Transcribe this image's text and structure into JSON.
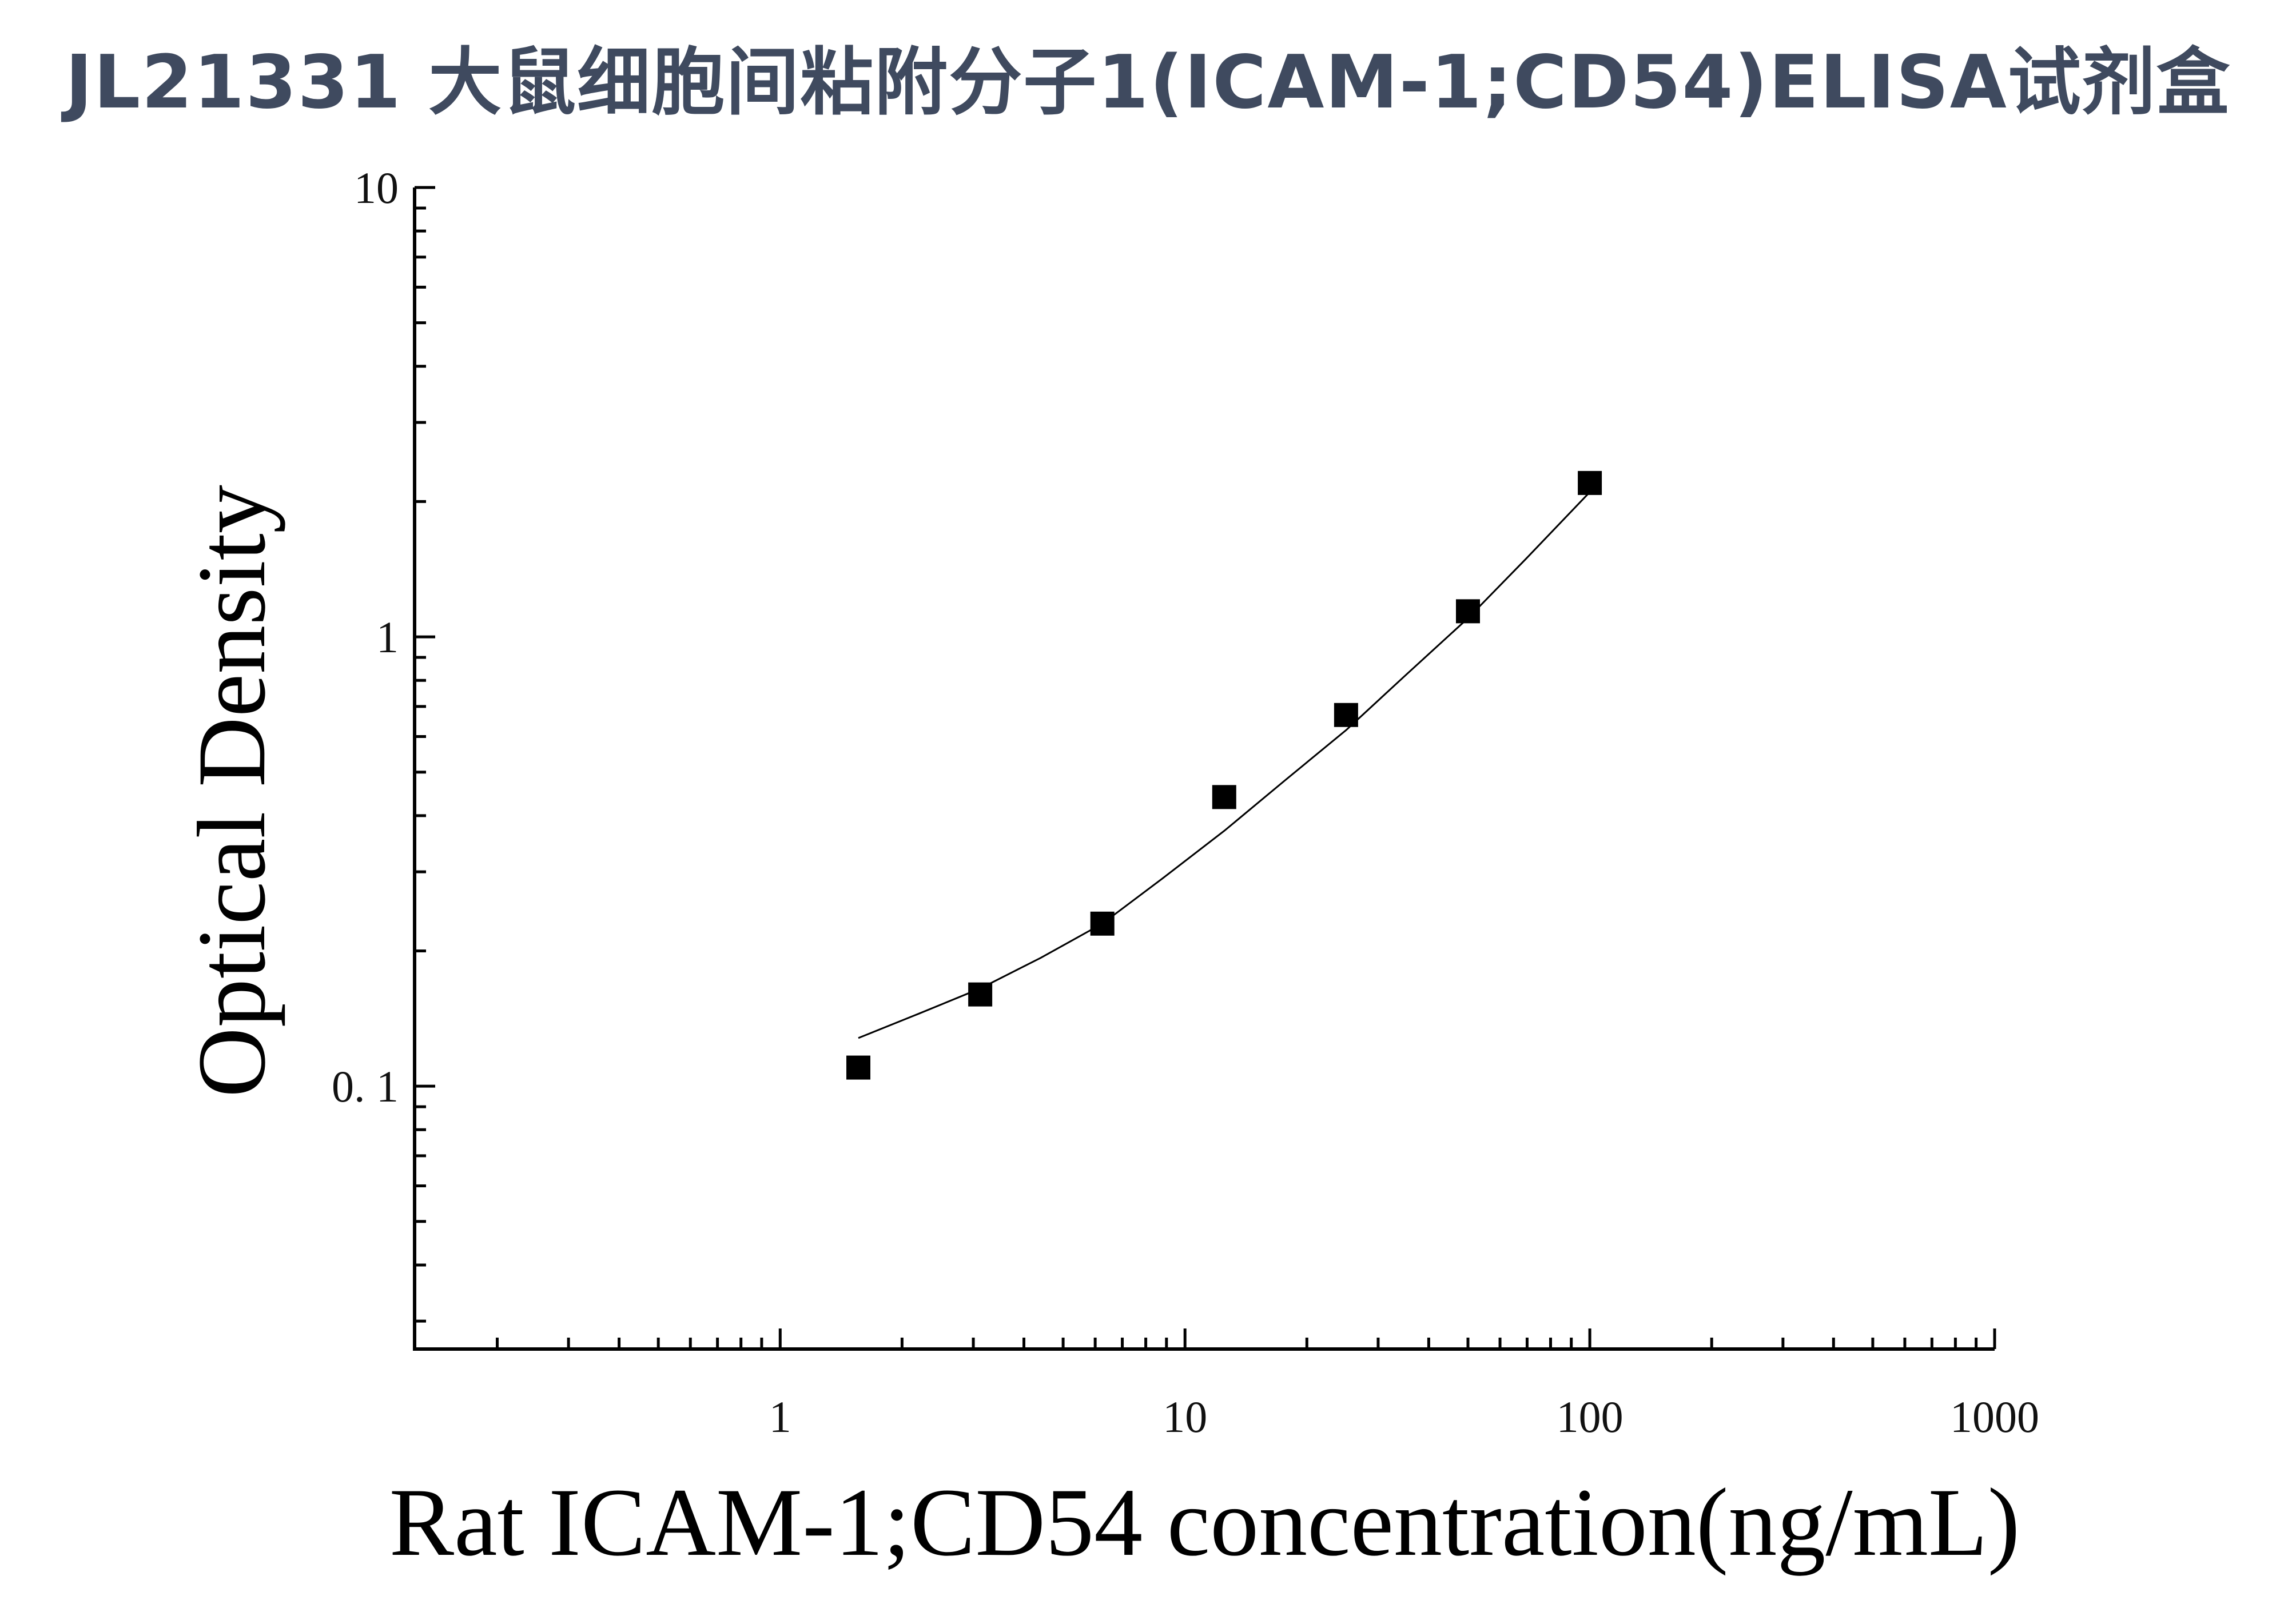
{
  "page": {
    "title": "JL21331 大鼠细胞间粘附分子1(ICAM-1;CD54)ELISA试剂盒"
  },
  "chart_data": {
    "type": "scatter",
    "title": "JL21331 大鼠细胞间粘附分子1(ICAM-1;CD54)ELISA试剂盒",
    "xlabel": "Rat ICAM-1;CD54 concentration(ng/mL)",
    "ylabel": "Optical Density",
    "x_scale": "log",
    "y_scale": "log",
    "xlim": [
      0.125,
      1000
    ],
    "ylim": [
      0.026,
      10
    ],
    "x_ticks": [
      {
        "value": 1,
        "label": "1"
      },
      {
        "value": 10,
        "label": "10"
      },
      {
        "value": 100,
        "label": "100"
      },
      {
        "value": 1000,
        "label": "1000"
      }
    ],
    "y_ticks": [
      {
        "value": 0.1,
        "label": "0. 1"
      },
      {
        "value": 1,
        "label": "1"
      },
      {
        "value": 10,
        "label": "10"
      }
    ],
    "grid": false,
    "legend": "none",
    "series": [
      {
        "marker": "square",
        "color": "#000000",
        "x": [
          1.56,
          3.12,
          6.25,
          12.5,
          25,
          50,
          100
        ],
        "y": [
          0.11,
          0.16,
          0.23,
          0.44,
          0.67,
          1.14,
          2.2
        ]
      }
    ],
    "fit_curve": {
      "color": "#000000",
      "x": [
        1.56,
        2.2,
        3.12,
        4.4,
        6.25,
        8.8,
        12.5,
        17.7,
        25,
        35,
        50,
        70,
        100
      ],
      "y": [
        0.128,
        0.145,
        0.165,
        0.193,
        0.23,
        0.29,
        0.37,
        0.48,
        0.62,
        0.82,
        1.1,
        1.5,
        2.1
      ]
    }
  }
}
